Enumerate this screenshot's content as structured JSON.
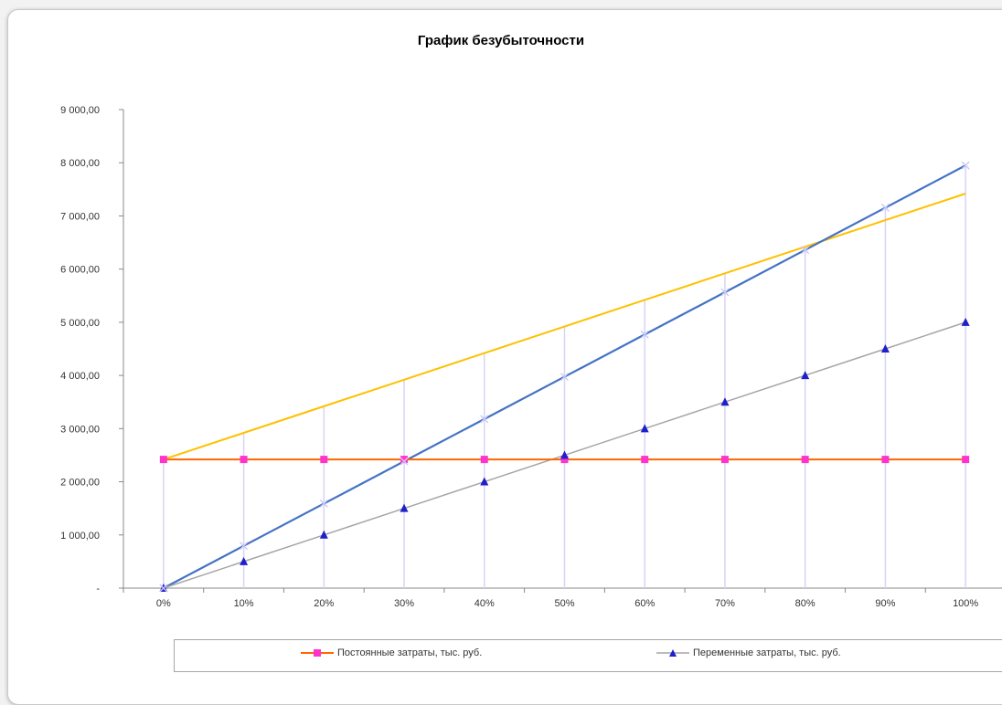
{
  "chart_data": {
    "type": "line",
    "title": "График безубыточности",
    "categories": [
      "0%",
      "10%",
      "20%",
      "30%",
      "40%",
      "50%",
      "60%",
      "70%",
      "80%",
      "90%",
      "100%"
    ],
    "y_ticks": [
      "-",
      "1 000,00",
      "2 000,00",
      "3 000,00",
      "4 000,00",
      "5 000,00",
      "6 000,00",
      "7 000,00",
      "8 000,00",
      "9 000,00"
    ],
    "ylim": [
      0,
      9000
    ],
    "series": [
      {
        "name": "Постоянные затраты, тыс. руб.",
        "color": "#ff6600",
        "marker": "square",
        "marker_color": "#ff33cc",
        "values": [
          2420,
          2420,
          2420,
          2420,
          2420,
          2420,
          2420,
          2420,
          2420,
          2420,
          2420
        ]
      },
      {
        "name": "Переменные затраты, тыс. руб.",
        "color": "#a6a6a6",
        "marker": "triangle",
        "marker_color": "#1f1fcc",
        "values": [
          0,
          500,
          1000,
          1500,
          2000,
          2500,
          3000,
          3500,
          4000,
          4500,
          5000
        ]
      },
      {
        "color": "#ffc000",
        "marker": "none",
        "values": [
          2420,
          2920,
          3420,
          3920,
          4420,
          4920,
          5420,
          5920,
          6420,
          6920,
          7420
        ]
      },
      {
        "color": "#4472c4",
        "marker": "x",
        "marker_color": "#c9c9f5",
        "values": [
          0,
          795,
          1590,
          2385,
          3180,
          3975,
          4770,
          5565,
          6360,
          7155,
          7950
        ]
      }
    ],
    "grid": false,
    "drop_lines": true,
    "legend_position": "bottom"
  }
}
